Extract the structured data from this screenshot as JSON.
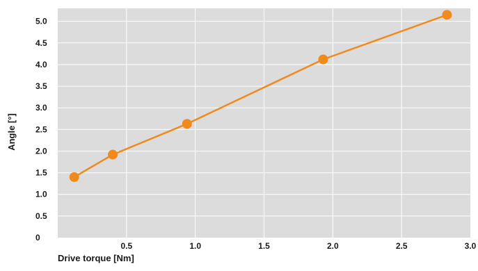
{
  "chart_data": {
    "type": "line",
    "title": "",
    "xlabel": "Drive torque [Nm]",
    "ylabel": "Angle [°]",
    "xlim": [
      0,
      3.0
    ],
    "ylim": [
      0,
      5.3
    ],
    "x_ticks": [
      "0.5",
      "1.0",
      "1.5",
      "2.0",
      "2.5",
      "3.0"
    ],
    "x_tick_values": [
      0.5,
      1.0,
      1.5,
      2.0,
      2.5,
      3.0
    ],
    "y_ticks": [
      "0",
      "0.5",
      "1.0",
      "1.5",
      "2.0",
      "2.5",
      "3.0",
      "3.5",
      "4.0",
      "4.5",
      "5.0"
    ],
    "y_tick_values": [
      0,
      0.5,
      1.0,
      1.5,
      2.0,
      2.5,
      3.0,
      3.5,
      4.0,
      4.5,
      5.0
    ],
    "grid": true,
    "series": [
      {
        "x": [
          0.12,
          0.4,
          0.94,
          1.93,
          2.83
        ],
        "y": [
          1.4,
          1.92,
          2.63,
          4.12,
          5.15
        ],
        "color": "#f08a1c"
      }
    ],
    "colors": {
      "plot_background": "#dcdcdc",
      "grid": "#ffffff",
      "series": "#f08a1c"
    }
  }
}
